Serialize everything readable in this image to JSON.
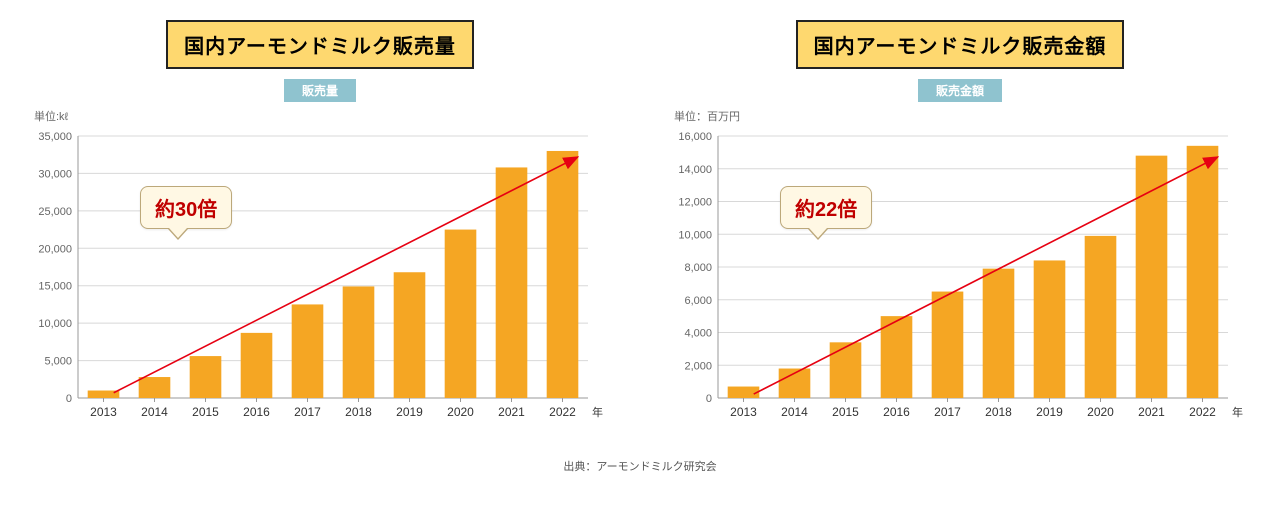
{
  "charts": [
    {
      "title": "国内アーモンドミルク販売量",
      "legend": "販売量",
      "unit_label": "単位:kℓ",
      "x_axis_label": "年",
      "type": "bar",
      "categories": [
        "2013",
        "2014",
        "2015",
        "2016",
        "2017",
        "2018",
        "2019",
        "2020",
        "2021",
        "2022"
      ],
      "values": [
        1000,
        2800,
        5600,
        8700,
        12500,
        14900,
        16800,
        22500,
        30800,
        33000
      ],
      "bar_color": "#f5a623",
      "ylim": [
        0,
        35000
      ],
      "ytick_step": 5000,
      "ytick_labels": [
        "0",
        "5,000",
        "10,000",
        "15,000",
        "20,000",
        "25,000",
        "30,000",
        "35,000"
      ],
      "grid_color": "#d8d8d8",
      "axis_color": "#999999",
      "bg_color": "#ffffff",
      "tick_fontsize": 11,
      "callout_text": "約30倍",
      "arrow_color": "#e60012",
      "arrow_start": [
        0.07,
        0.02
      ],
      "arrow_end": [
        0.98,
        0.92
      ]
    },
    {
      "title": "国内アーモンドミルク販売金額",
      "legend": "販売金額",
      "unit_label": "単位：百万円",
      "x_axis_label": "年",
      "type": "bar",
      "categories": [
        "2013",
        "2014",
        "2015",
        "2016",
        "2017",
        "2018",
        "2019",
        "2020",
        "2021",
        "2022"
      ],
      "values": [
        700,
        1800,
        3400,
        5000,
        6500,
        7900,
        8400,
        9900,
        14800,
        15400
      ],
      "bar_color": "#f5a623",
      "ylim": [
        0,
        16000
      ],
      "ytick_step": 2000,
      "ytick_labels": [
        "0",
        "2,000",
        "4,000",
        "6,000",
        "8,000",
        "10,000",
        "12,000",
        "14,000",
        "16,000"
      ],
      "grid_color": "#d8d8d8",
      "axis_color": "#999999",
      "bg_color": "#ffffff",
      "tick_fontsize": 11,
      "callout_text": "約22倍",
      "arrow_color": "#e60012",
      "arrow_start": [
        0.07,
        0.015
      ],
      "arrow_end": [
        0.98,
        0.92
      ]
    }
  ],
  "source_text": "出典：アーモンドミルク研究会",
  "title_bg": "#fed86f",
  "title_border": "#222222",
  "legend_bg": "#8fc3cf",
  "callout_bg": "#fff8e4",
  "callout_border": "#bca87a",
  "callout_text_color": "#c00000"
}
